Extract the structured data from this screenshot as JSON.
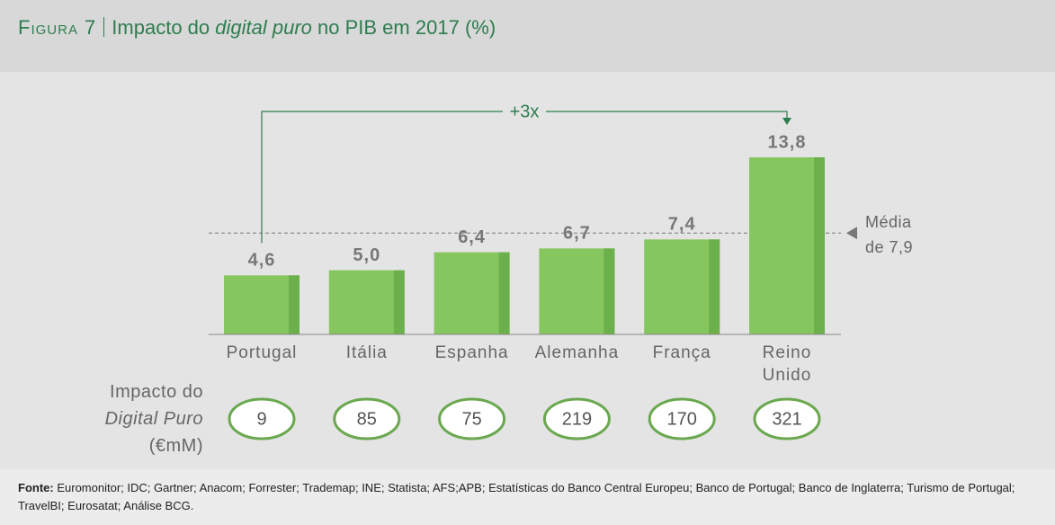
{
  "chart_data": {
    "type": "bar",
    "figure_label": "Figura 7",
    "title_plain": "Impacto do",
    "title_italic": "digital puro",
    "title_rest": "no PIB em 2017",
    "title_unit": "(%)",
    "categories": [
      "Portugal",
      "Itália",
      "Espanha",
      "Alemanha",
      "França",
      "Reino Unido"
    ],
    "values": [
      4.6,
      5.0,
      6.4,
      6.7,
      7.4,
      13.8
    ],
    "value_labels": [
      "4,6",
      "5,0",
      "6,4",
      "6,7",
      "7,4",
      "13,8"
    ],
    "color": "#86c65f",
    "reference_line": {
      "value": 7.9,
      "label": "Média de 7,9"
    },
    "annotation": "+3x",
    "impact_label_1": "Impacto do",
    "impact_label_2": "Digital Puro",
    "impact_label_3": "(€mM)",
    "impact_values": [
      9,
      85,
      75,
      219,
      170,
      321
    ],
    "source_label": "Fonte:",
    "source": "Euromonitor; IDC; Gartner; Anacom; Forrester; Trademap; INE; Statista; AFS;APB; Estatísticas do Banco Central Europeu; Banco de Portugal; Banco de Inglaterra; Turismo de Portugal; TravelBI; Eurosatat; Análise BCG."
  }
}
